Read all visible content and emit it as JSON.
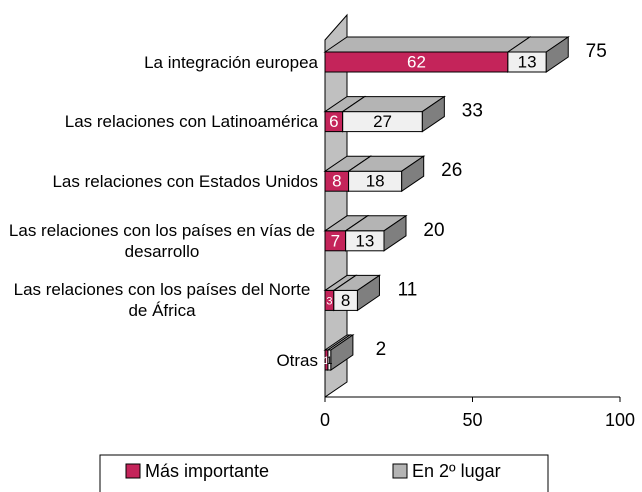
{
  "chart_data": {
    "type": "bar3d-stacked-horizontal",
    "categories": [
      "La integración europea",
      "Las relaciones con Latinoamérica",
      "Las relaciones con Estados Unidos",
      "Las relaciones con los países en vías de desarrollo",
      "Las relaciones con los países del Norte de África",
      "Otras"
    ],
    "series": [
      {
        "name": "Más importante",
        "color": "#c4245a",
        "values": [
          62,
          6,
          8,
          7,
          3,
          1
        ]
      },
      {
        "name": "En 2º lugar",
        "color": "#f0f0f0",
        "values": [
          13,
          27,
          18,
          13,
          8,
          1
        ]
      }
    ],
    "totals": [
      75,
      33,
      26,
      20,
      11,
      2
    ],
    "xlim": [
      0,
      100
    ],
    "xticks": [
      0,
      50,
      100
    ],
    "legend": "bottom"
  }
}
